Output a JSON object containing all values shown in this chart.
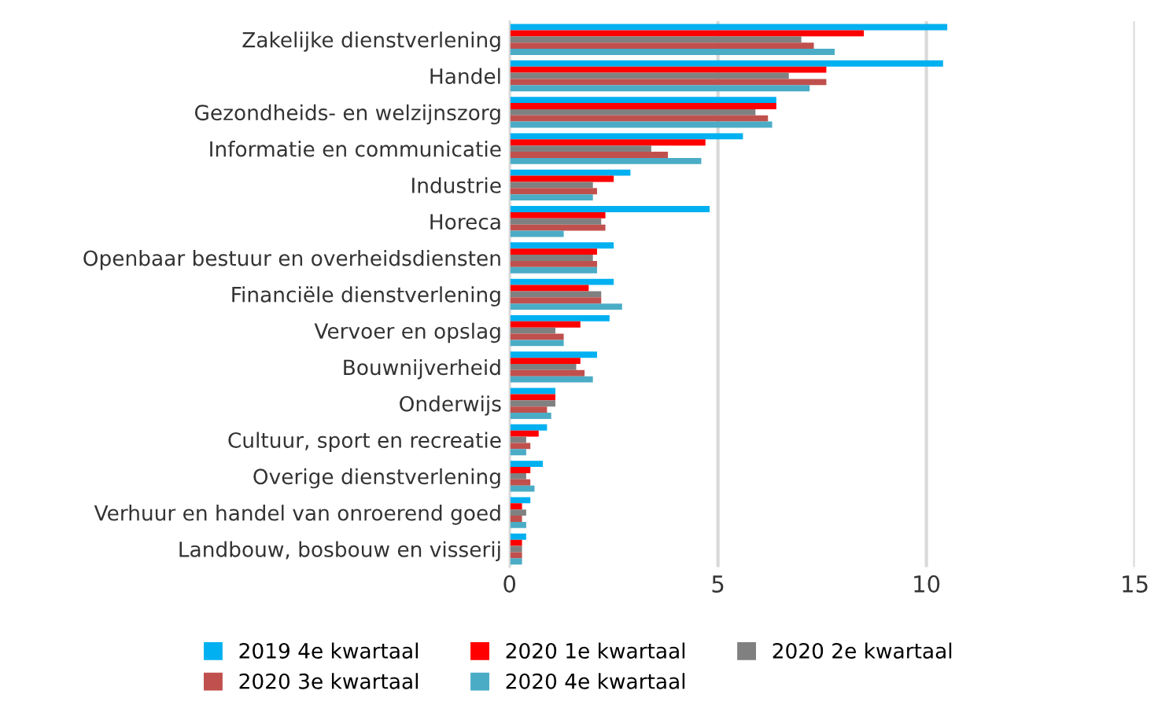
{
  "chart_data": {
    "type": "bar",
    "orientation": "horizontal",
    "categories": [
      "Zakelijke dienstverlening",
      "Handel",
      "Gezondheids- en welzijnszorg",
      "Informatie en communicatie",
      "Industrie",
      "Horeca",
      "Openbaar bestuur en overheidsdiensten",
      "Financiële dienstverlening",
      "Vervoer en opslag",
      "Bouwnijverheid",
      "Onderwijs",
      "Cultuur, sport en recreatie",
      "Overige dienstverlening",
      "Verhuur en handel van onroerend goed",
      "Landbouw, bosbouw en visserij"
    ],
    "series": [
      {
        "name": "2019 4e kwartaal",
        "color": "#00b0f0",
        "values": [
          10.5,
          10.4,
          6.4,
          5.6,
          2.9,
          4.8,
          2.5,
          2.5,
          2.4,
          2.1,
          1.1,
          0.9,
          0.8,
          0.5,
          0.4
        ]
      },
      {
        "name": "2020 1e kwartaal",
        "color": "#ff0000",
        "values": [
          8.5,
          7.6,
          6.4,
          4.7,
          2.5,
          2.3,
          2.1,
          1.9,
          1.7,
          1.7,
          1.1,
          0.7,
          0.5,
          0.3,
          0.3
        ]
      },
      {
        "name": "2020 2e kwartaal",
        "color": "#808080",
        "values": [
          7.0,
          6.7,
          5.9,
          3.4,
          2.0,
          2.2,
          2.0,
          2.2,
          1.1,
          1.6,
          1.1,
          0.4,
          0.4,
          0.4,
          0.3
        ]
      },
      {
        "name": "2020 3e kwartaal",
        "color": "#c0504d",
        "values": [
          7.3,
          7.6,
          6.2,
          3.8,
          2.1,
          2.3,
          2.1,
          2.2,
          1.3,
          1.8,
          0.9,
          0.5,
          0.5,
          0.3,
          0.3
        ]
      },
      {
        "name": "2020 4e kwartaal",
        "color": "#4bacc6",
        "values": [
          7.8,
          7.2,
          6.3,
          4.6,
          2.0,
          1.3,
          2.1,
          2.7,
          1.3,
          2.0,
          1.0,
          0.4,
          0.6,
          0.4,
          0.3
        ]
      }
    ],
    "xlim": [
      0,
      15
    ],
    "xticks": [
      0,
      5,
      10,
      15
    ],
    "grid": "x",
    "legend": "bottom"
  }
}
